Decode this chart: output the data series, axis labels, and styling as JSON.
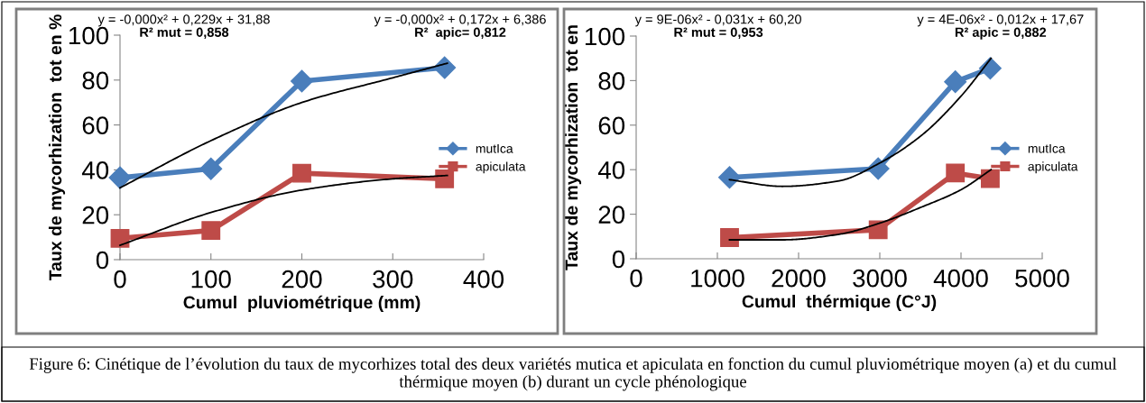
{
  "chart_data": [
    {
      "type": "line",
      "xlabel": "Cumul  pluviométrique (mm)",
      "ylabel": "Taux de mycorhization  tot en %",
      "x": [
        0,
        100,
        200,
        357
      ],
      "xlim": [
        0,
        400
      ],
      "xticks": [
        0,
        100,
        200,
        300,
        400
      ],
      "ylim": [
        0,
        100
      ],
      "yticks": [
        0,
        20,
        40,
        60,
        80,
        100
      ],
      "grid": false,
      "legend": "right",
      "line_style": "solid",
      "series": [
        {
          "name": "mutIca",
          "color": "#4a7ebb",
          "marker": "diamond",
          "values": [
            36.5,
            40.5,
            79.5,
            85.5
          ]
        },
        {
          "name": "apiculata",
          "color": "#be4b48",
          "marker": "square",
          "values": [
            9.5,
            13,
            38.5,
            36
          ]
        },
        {
          "type": "line",
          "color": "#000000",
          "marker": "none",
          "x": [
            0,
            100,
            200,
            300,
            360
          ],
          "values": [
            32,
            53,
            70,
            81,
            87.5
          ]
        },
        {
          "type": "line",
          "color": "#000000",
          "marker": "none",
          "x": [
            0,
            100,
            200,
            300,
            360
          ],
          "values": [
            6.4,
            21,
            31,
            36,
            37.5
          ]
        }
      ],
      "annotations": [
        "y = -0,000x² + 0,229x + 31,88",
        "R² mut = 0,858",
        "y = -0,000x² + 0,172x + 6,386",
        "R²  apic= 0,812",
        "Figure 6: Cinétique de l’évolution du taux de mycorhizes total des deux variétés mutica et apiculata en fonction du cumul pluviométrique moyen (a) et du cumul thérmique moyen (b) durant un cycle phénologique"
      ]
    },
    {
      "type": "line",
      "xlabel": "Cumul  thérmique (C°J)",
      "ylabel": "Taux de mycorhization  tot en",
      "x": [
        1150,
        2980,
        3930,
        4360
      ],
      "xlim": [
        0,
        5000
      ],
      "xticks": [
        0,
        1000,
        2000,
        3000,
        4000,
        5000
      ],
      "ylim": [
        0,
        100
      ],
      "yticks": [
        0,
        20,
        40,
        60,
        80,
        100
      ],
      "grid": false,
      "legend": "right",
      "line_style": "solid",
      "series": [
        {
          "name": "mutIca",
          "color": "#4a7ebb",
          "marker": "diamond",
          "values": [
            36.5,
            40.5,
            79.5,
            85.5
          ]
        },
        {
          "name": "apiculata",
          "color": "#be4b48",
          "marker": "square",
          "values": [
            9.5,
            13,
            38.5,
            36
          ]
        },
        {
          "type": "line",
          "color": "#000000",
          "marker": "none",
          "x": [
            1150,
            1800,
            2500,
            3000,
            3500,
            4000,
            4370
          ],
          "values": [
            35.5,
            32.5,
            35,
            43,
            55,
            73,
            90
          ]
        },
        {
          "type": "line",
          "color": "#000000",
          "marker": "none",
          "x": [
            1150,
            1800,
            2500,
            3000,
            3500,
            4000,
            4370
          ],
          "values": [
            8.5,
            8.5,
            11,
            16,
            23,
            31,
            40
          ]
        }
      ],
      "annotations": [
        "y = 9E-06x² - 0,031x + 60,20",
        "R² mut = 0,953",
        "y = 4E-06x² - 0,012x + 17,67",
        "R² apic = 0,882"
      ]
    }
  ]
}
